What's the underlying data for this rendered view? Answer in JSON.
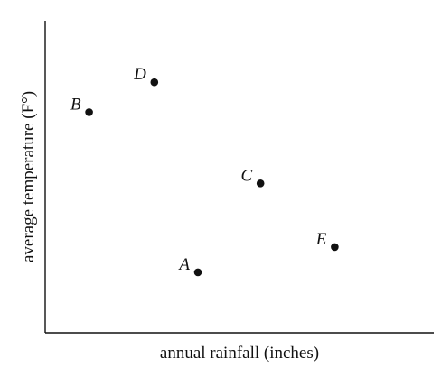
{
  "chart_data": {
    "type": "scatter",
    "xlabel": "annual rainfall (inches)",
    "ylabel": "average temperature (F°)",
    "points": [
      {
        "label": "A",
        "x": 0.393,
        "y": 0.194
      },
      {
        "label": "B",
        "x": 0.113,
        "y": 0.707
      },
      {
        "label": "C",
        "x": 0.554,
        "y": 0.479
      },
      {
        "label": "D",
        "x": 0.281,
        "y": 0.803
      },
      {
        "label": "E",
        "x": 0.745,
        "y": 0.275
      }
    ],
    "xlim": [
      0,
      1
    ],
    "ylim": [
      0,
      1
    ],
    "grid": false
  }
}
